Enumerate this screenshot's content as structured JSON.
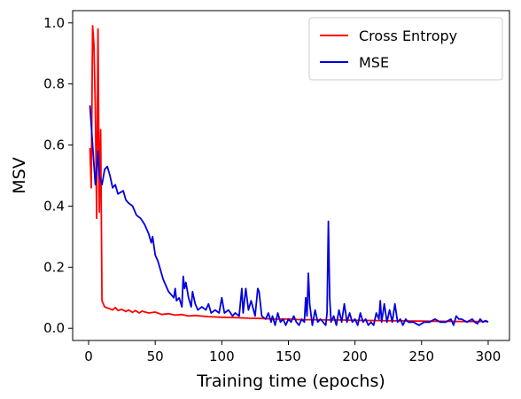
{
  "chart_data": {
    "type": "line",
    "xlabel": "Training time (epochs)",
    "ylabel": "MSV",
    "xlim": [
      -12,
      316
    ],
    "ylim": [
      -0.04,
      1.04
    ],
    "xticks": [
      0,
      50,
      100,
      150,
      200,
      250,
      300
    ],
    "yticks": [
      0.0,
      0.2,
      0.4,
      0.6,
      0.8,
      1.0
    ],
    "xtick_labels": [
      "0",
      "50",
      "100",
      "150",
      "200",
      "250",
      "300"
    ],
    "ytick_labels": [
      "0.0",
      "0.2",
      "0.4",
      "0.6",
      "0.8",
      "1.0"
    ],
    "legend_position": "top-right",
    "series": [
      {
        "name": "Cross Entropy",
        "color": "#ff0000",
        "points": [
          [
            1,
            0.59
          ],
          [
            2,
            0.46
          ],
          [
            3,
            0.99
          ],
          [
            4,
            0.93
          ],
          [
            5,
            0.72
          ],
          [
            6,
            0.36
          ],
          [
            7,
            0.98
          ],
          [
            8,
            0.38
          ],
          [
            9,
            0.65
          ],
          [
            10,
            0.09
          ],
          [
            12,
            0.07
          ],
          [
            15,
            0.065
          ],
          [
            18,
            0.06
          ],
          [
            20,
            0.068
          ],
          [
            22,
            0.058
          ],
          [
            25,
            0.062
          ],
          [
            28,
            0.055
          ],
          [
            30,
            0.06
          ],
          [
            33,
            0.052
          ],
          [
            35,
            0.058
          ],
          [
            38,
            0.05
          ],
          [
            40,
            0.056
          ],
          [
            45,
            0.05
          ],
          [
            50,
            0.053
          ],
          [
            55,
            0.045
          ],
          [
            60,
            0.048
          ],
          [
            65,
            0.043
          ],
          [
            70,
            0.045
          ],
          [
            75,
            0.04
          ],
          [
            80,
            0.042
          ],
          [
            90,
            0.038
          ],
          [
            100,
            0.036
          ],
          [
            110,
            0.035
          ],
          [
            120,
            0.033
          ],
          [
            130,
            0.032
          ],
          [
            140,
            0.03
          ],
          [
            150,
            0.03
          ],
          [
            160,
            0.028
          ],
          [
            170,
            0.028
          ],
          [
            180,
            0.027
          ],
          [
            190,
            0.027
          ],
          [
            200,
            0.026
          ],
          [
            220,
            0.025
          ],
          [
            240,
            0.024
          ],
          [
            260,
            0.023
          ],
          [
            280,
            0.022
          ],
          [
            300,
            0.022
          ]
        ]
      },
      {
        "name": "MSE",
        "color": "#0000dd",
        "points": [
          [
            1,
            0.73
          ],
          [
            3,
            0.6
          ],
          [
            5,
            0.47
          ],
          [
            7,
            0.58
          ],
          [
            8,
            0.5
          ],
          [
            10,
            0.47
          ],
          [
            12,
            0.52
          ],
          [
            14,
            0.53
          ],
          [
            16,
            0.5
          ],
          [
            18,
            0.46
          ],
          [
            20,
            0.47
          ],
          [
            22,
            0.44
          ],
          [
            26,
            0.45
          ],
          [
            28,
            0.42
          ],
          [
            30,
            0.41
          ],
          [
            33,
            0.4
          ],
          [
            36,
            0.37
          ],
          [
            39,
            0.36
          ],
          [
            42,
            0.34
          ],
          [
            45,
            0.31
          ],
          [
            47,
            0.28
          ],
          [
            48,
            0.3
          ],
          [
            50,
            0.24
          ],
          [
            52,
            0.22
          ],
          [
            54,
            0.19
          ],
          [
            56,
            0.16
          ],
          [
            58,
            0.14
          ],
          [
            60,
            0.12
          ],
          [
            62,
            0.11
          ],
          [
            64,
            0.1
          ],
          [
            65,
            0.13
          ],
          [
            66,
            0.09
          ],
          [
            68,
            0.1
          ],
          [
            70,
            0.07
          ],
          [
            71,
            0.17
          ],
          [
            72,
            0.13
          ],
          [
            73,
            0.15
          ],
          [
            75,
            0.1
          ],
          [
            77,
            0.07
          ],
          [
            78,
            0.12
          ],
          [
            80,
            0.08
          ],
          [
            82,
            0.06
          ],
          [
            85,
            0.07
          ],
          [
            88,
            0.06
          ],
          [
            90,
            0.08
          ],
          [
            92,
            0.05
          ],
          [
            95,
            0.06
          ],
          [
            98,
            0.05
          ],
          [
            100,
            0.1
          ],
          [
            102,
            0.05
          ],
          [
            105,
            0.06
          ],
          [
            108,
            0.04
          ],
          [
            110,
            0.05
          ],
          [
            113,
            0.04
          ],
          [
            115,
            0.13
          ],
          [
            116,
            0.05
          ],
          [
            118,
            0.13
          ],
          [
            120,
            0.06
          ],
          [
            122,
            0.09
          ],
          [
            125,
            0.04
          ],
          [
            127,
            0.13
          ],
          [
            128,
            0.12
          ],
          [
            130,
            0.04
          ],
          [
            133,
            0.03
          ],
          [
            135,
            0.05
          ],
          [
            137,
            0.02
          ],
          [
            138,
            0.04
          ],
          [
            140,
            0.01
          ],
          [
            142,
            0.05
          ],
          [
            144,
            0.02
          ],
          [
            146,
            0.03
          ],
          [
            148,
            0.01
          ],
          [
            150,
            0.03
          ],
          [
            152,
            0.02
          ],
          [
            154,
            0.04
          ],
          [
            156,
            0.02
          ],
          [
            158,
            0.01
          ],
          [
            160,
            0.03
          ],
          [
            162,
            0.02
          ],
          [
            163,
            0.1
          ],
          [
            164,
            0.04
          ],
          [
            165,
            0.18
          ],
          [
            166,
            0.08
          ],
          [
            168,
            0.01
          ],
          [
            170,
            0.06
          ],
          [
            172,
            0.02
          ],
          [
            174,
            0.03
          ],
          [
            176,
            0.02
          ],
          [
            178,
            0.01
          ],
          [
            179,
            0.05
          ],
          [
            180,
            0.35
          ],
          [
            181,
            0.1
          ],
          [
            182,
            0.02
          ],
          [
            184,
            0.04
          ],
          [
            186,
            0.01
          ],
          [
            188,
            0.06
          ],
          [
            190,
            0.02
          ],
          [
            192,
            0.08
          ],
          [
            194,
            0.02
          ],
          [
            196,
            0.05
          ],
          [
            198,
            0.02
          ],
          [
            200,
            0.03
          ],
          [
            202,
            0.01
          ],
          [
            204,
            0.05
          ],
          [
            206,
            0.02
          ],
          [
            208,
            0.03
          ],
          [
            210,
            0.01
          ],
          [
            212,
            0.02
          ],
          [
            214,
            0.01
          ],
          [
            216,
            0.05
          ],
          [
            218,
            0.03
          ],
          [
            219,
            0.09
          ],
          [
            220,
            0.02
          ],
          [
            222,
            0.08
          ],
          [
            224,
            0.02
          ],
          [
            226,
            0.06
          ],
          [
            228,
            0.02
          ],
          [
            230,
            0.08
          ],
          [
            232,
            0.02
          ],
          [
            234,
            0.03
          ],
          [
            236,
            0.01
          ],
          [
            238,
            0.03
          ],
          [
            240,
            0.02
          ],
          [
            244,
            0.02
          ],
          [
            248,
            0.01
          ],
          [
            252,
            0.02
          ],
          [
            256,
            0.02
          ],
          [
            260,
            0.03
          ],
          [
            264,
            0.02
          ],
          [
            268,
            0.02
          ],
          [
            272,
            0.03
          ],
          [
            274,
            0.01
          ],
          [
            276,
            0.04
          ],
          [
            278,
            0.03
          ],
          [
            280,
            0.03
          ],
          [
            284,
            0.02
          ],
          [
            288,
            0.03
          ],
          [
            290,
            0.02
          ],
          [
            292,
            0.015
          ],
          [
            294,
            0.03
          ],
          [
            296,
            0.02
          ],
          [
            298,
            0.025
          ],
          [
            300,
            0.02
          ]
        ]
      }
    ]
  }
}
